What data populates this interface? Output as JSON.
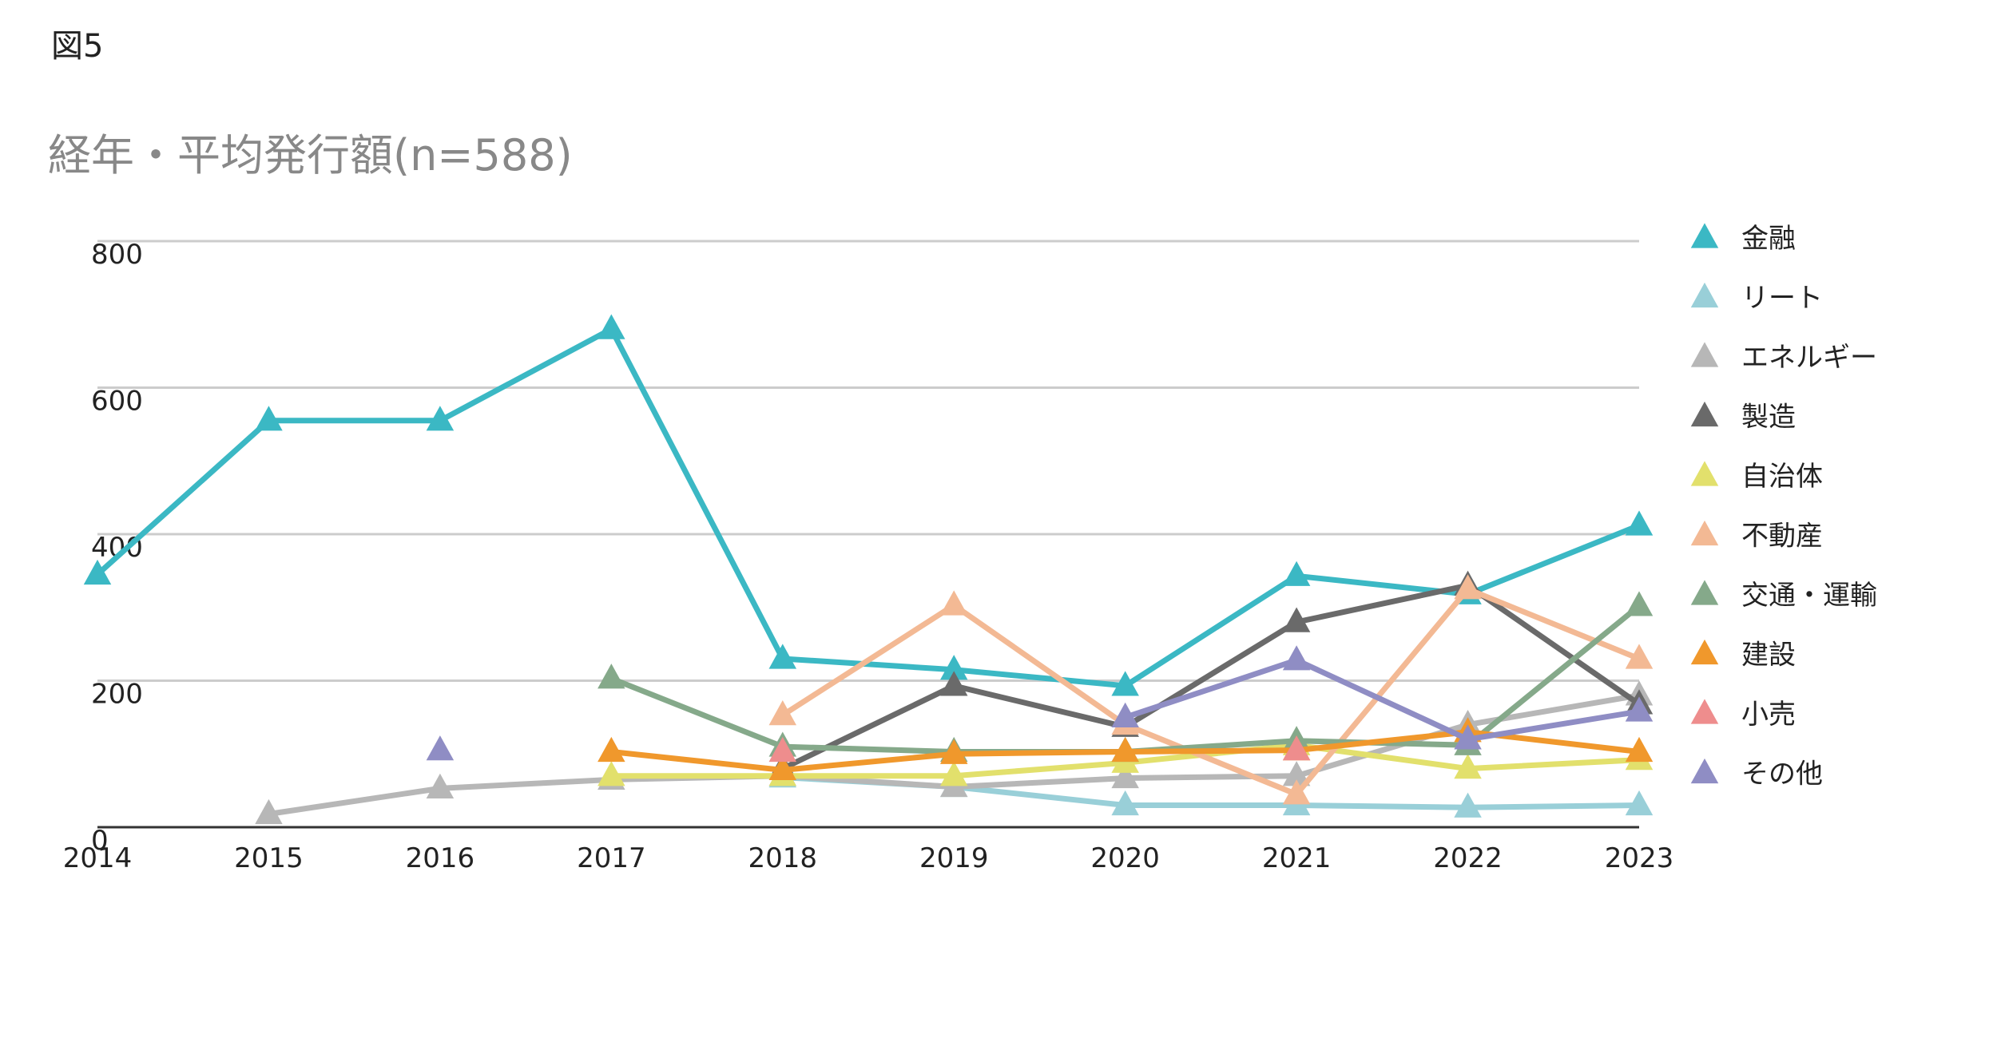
{
  "figure_label": "図5",
  "chart_data": {
    "type": "line",
    "title": "経年・平均発行額(n=588)",
    "xlabel": "",
    "ylabel": "",
    "x": [
      2014,
      2015,
      2016,
      2017,
      2018,
      2019,
      2020,
      2021,
      2022,
      2023
    ],
    "ylim": [
      0,
      800
    ],
    "yticks": [
      0,
      200,
      400,
      600,
      800
    ],
    "grid": true,
    "legend_position": "right",
    "marker": "triangle",
    "series": [
      {
        "name": "金融",
        "color": "#3bb8c4",
        "values": [
          345,
          555,
          555,
          680,
          230,
          215,
          193,
          343,
          318,
          412
        ]
      },
      {
        "name": "リート",
        "color": "#99cfd8",
        "values": [
          null,
          null,
          null,
          null,
          68,
          55,
          30,
          30,
          27,
          30
        ]
      },
      {
        "name": "エネルギー",
        "color": "#b7b7b7",
        "values": [
          null,
          18,
          53,
          65,
          70,
          55,
          67,
          70,
          140,
          180
        ]
      },
      {
        "name": "製造",
        "color": "#6a6a6a",
        "values": [
          null,
          null,
          null,
          null,
          80,
          193,
          137,
          280,
          330,
          168
        ]
      },
      {
        "name": "自治体",
        "color": "#e2e06c",
        "values": [
          null,
          null,
          null,
          70,
          70,
          70,
          88,
          112,
          80,
          92
        ]
      },
      {
        "name": "不動産",
        "color": "#f3b994",
        "values": [
          null,
          null,
          null,
          null,
          153,
          303,
          140,
          45,
          325,
          230
        ]
      },
      {
        "name": "交通・運輸",
        "color": "#85a98a",
        "values": [
          null,
          null,
          null,
          203,
          110,
          103,
          103,
          118,
          112,
          302
        ]
      },
      {
        "name": "建設",
        "color": "#f0982c",
        "values": [
          null,
          null,
          null,
          103,
          78,
          100,
          103,
          105,
          130,
          103
        ]
      },
      {
        "name": "小売",
        "color": "#ee8d8d",
        "values": [
          null,
          null,
          null,
          null,
          103,
          null,
          null,
          105,
          null,
          null
        ]
      },
      {
        "name": "その他",
        "color": "#8f8dc4",
        "values": [
          null,
          null,
          105,
          null,
          null,
          null,
          150,
          228,
          120,
          158
        ]
      }
    ]
  }
}
